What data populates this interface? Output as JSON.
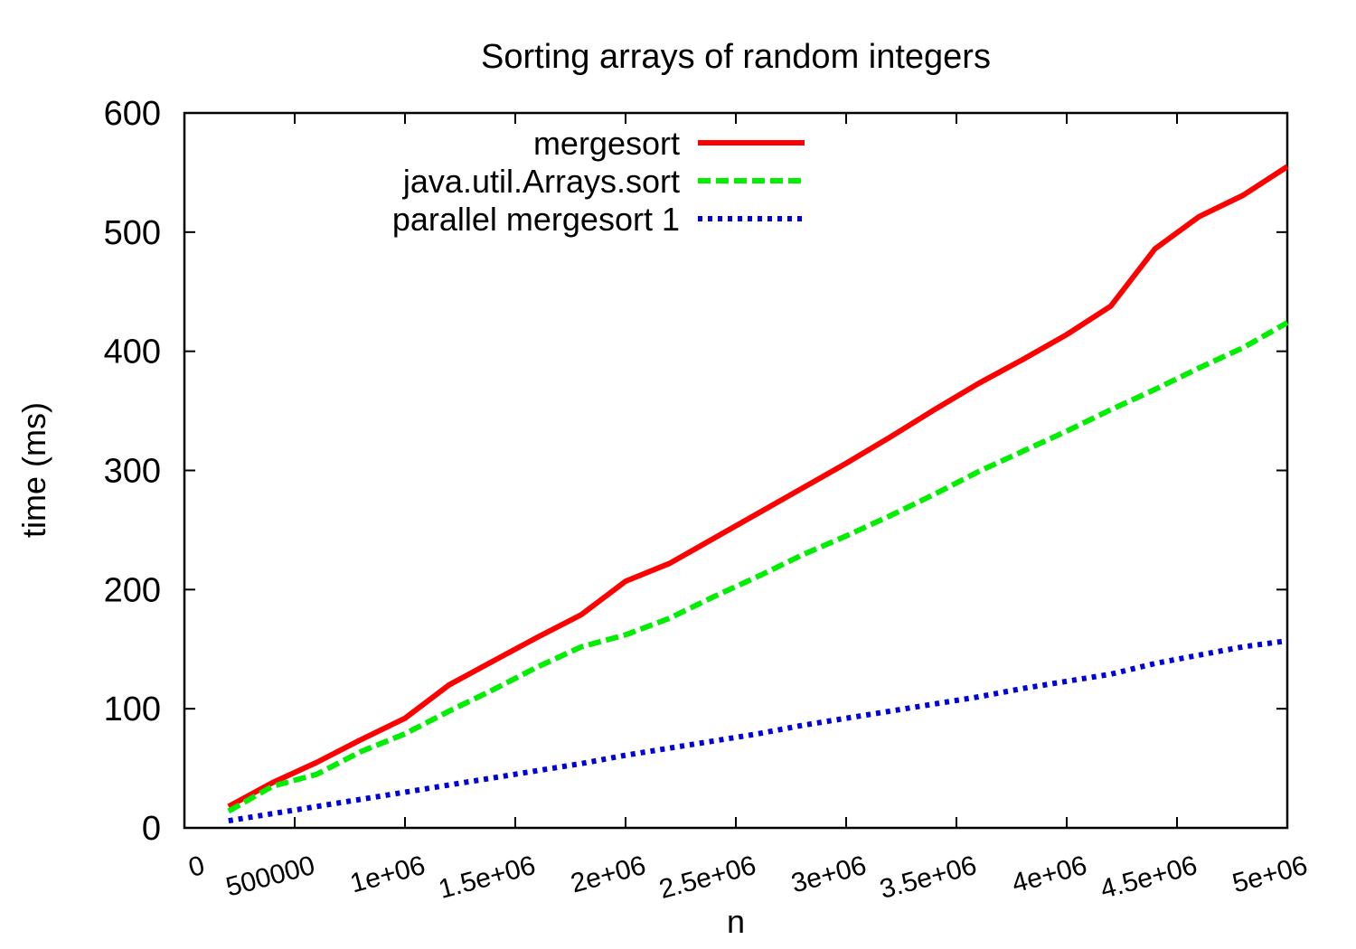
{
  "chart_data": {
    "type": "line",
    "title": "Sorting arrays of random integers",
    "xlabel": "n",
    "ylabel": "time (ms)",
    "xlim": [
      0,
      5000000
    ],
    "ylim": [
      0,
      600
    ],
    "grid": false,
    "legend_position": "top-left-inside",
    "x_ticks": [
      0,
      500000,
      1000000,
      1500000,
      2000000,
      2500000,
      3000000,
      3500000,
      4000000,
      4500000,
      5000000
    ],
    "x_tick_labels": [
      "0",
      "500000",
      "1e+06",
      "1.5e+06",
      "2e+06",
      "2.5e+06",
      "3e+06",
      "3.5e+06",
      "4e+06",
      "4.5e+06",
      "5e+06"
    ],
    "y_ticks": [
      0,
      100,
      200,
      300,
      400,
      500,
      600
    ],
    "y_tick_labels": [
      "0",
      "100",
      "200",
      "300",
      "400",
      "500",
      "600"
    ],
    "x": [
      200000,
      400000,
      600000,
      800000,
      1000000,
      1200000,
      1400000,
      1600000,
      1800000,
      2000000,
      2200000,
      2400000,
      2600000,
      2800000,
      3000000,
      3200000,
      3400000,
      3600000,
      3800000,
      4000000,
      4200000,
      4400000,
      4600000,
      4800000,
      5000000
    ],
    "series": [
      {
        "name": "mergesort",
        "color": "#ff0000",
        "style": "solid",
        "values": [
          18,
          38,
          55,
          74,
          92,
          120,
          140,
          160,
          179,
          207,
          222,
          243,
          264,
          285,
          306,
          328,
          351,
          373,
          393,
          414,
          438,
          486,
          513,
          531,
          555
        ]
      },
      {
        "name": "java.util.Arrays.sort",
        "color": "#00ee00",
        "style": "dashed",
        "values": [
          14,
          35,
          45,
          64,
          79,
          98,
          116,
          135,
          152,
          162,
          176,
          194,
          211,
          229,
          245,
          262,
          280,
          299,
          316,
          333,
          351,
          368,
          386,
          403,
          424
        ]
      },
      {
        "name": "parallel mergesort 1",
        "color": "#0000dd",
        "style": "dotted",
        "values": [
          6,
          12,
          18,
          24,
          30,
          36,
          42,
          48,
          54,
          61,
          67,
          73,
          79,
          86,
          92,
          98,
          104,
          110,
          117,
          123,
          129,
          138,
          145,
          152,
          157
        ]
      }
    ]
  }
}
